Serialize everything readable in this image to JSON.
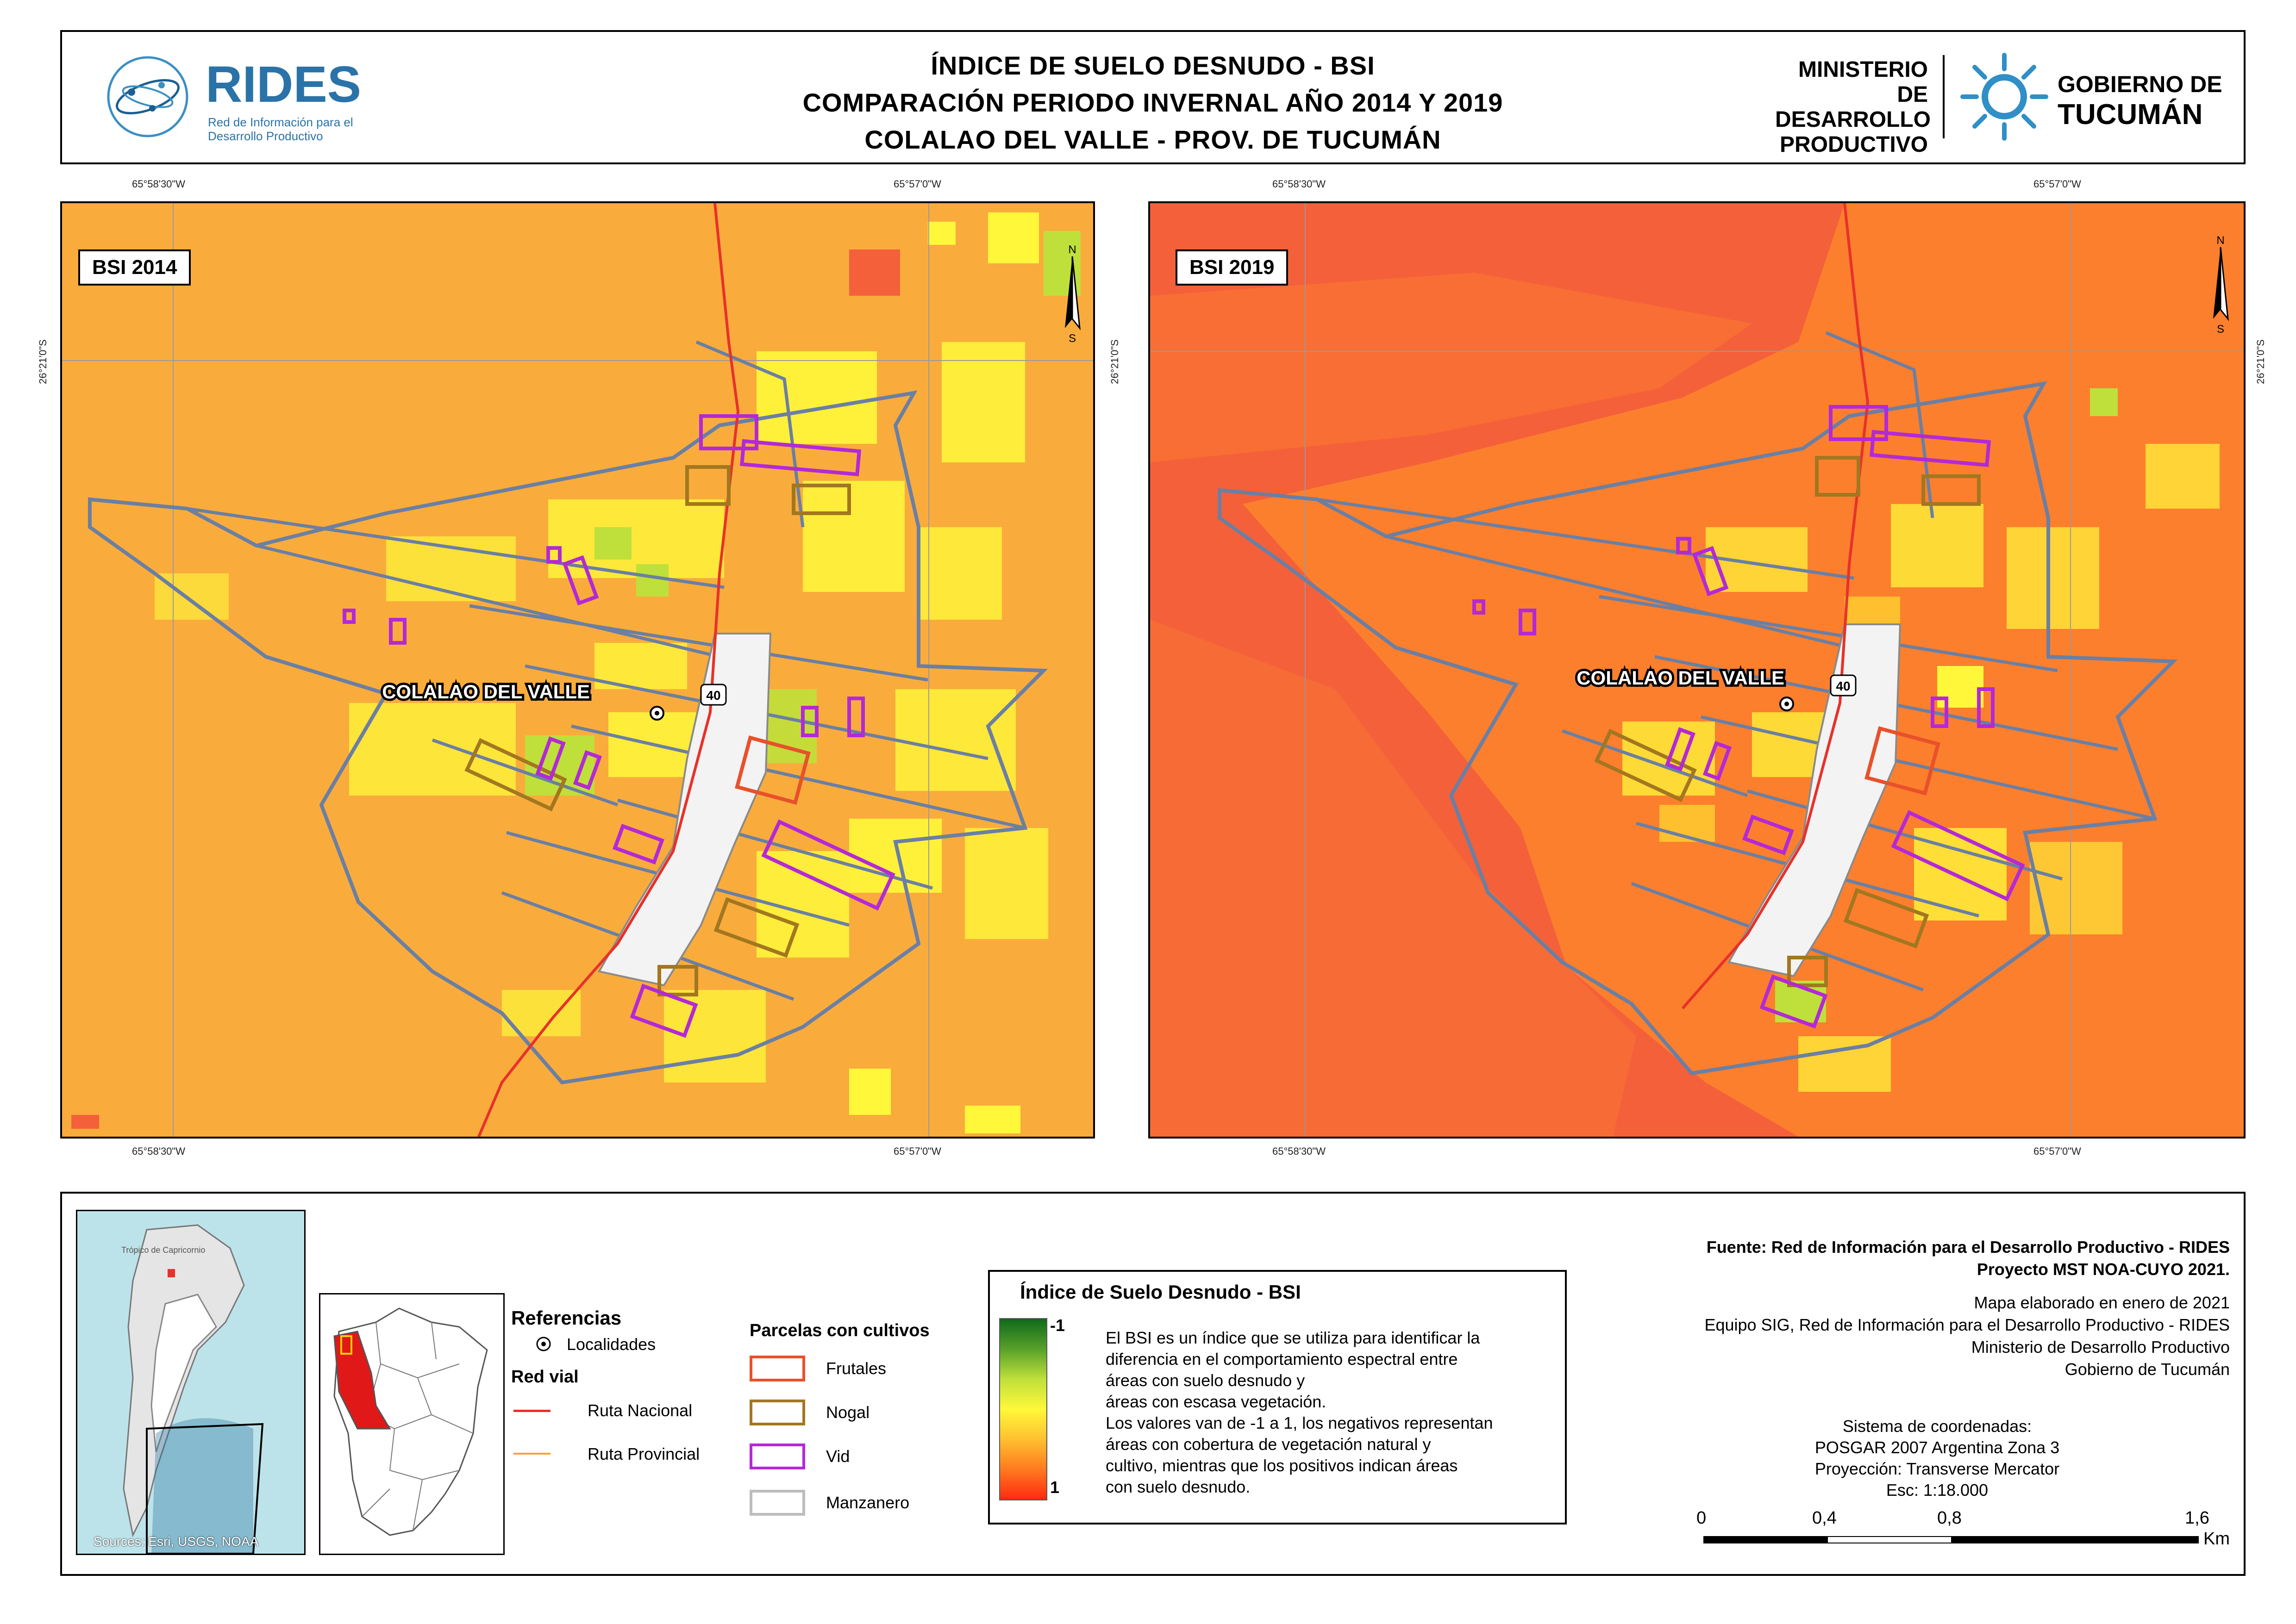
{
  "header": {
    "title_lines": [
      "ÍNDICE DE SUELO DESNUDO - BSI",
      "COMPARACIÓN PERIODO INVERNAL AÑO 2014 Y 2019",
      "COLALAO DEL VALLE - PROV. DE TUCUMÁN"
    ],
    "rides_logo": {
      "name": "RIDES",
      "tagline": "Red de Información para el Desarrollo Productivo"
    },
    "ministerio_logo": [
      "MINISTERIO DE",
      "DESARROLLO",
      "PRODUCTIVO"
    ],
    "gobierno_logo": [
      "GOBIERNO DE",
      "TUCUMÁN"
    ]
  },
  "coordinates": {
    "lon_left": "65°58'30\"W",
    "lon_right": "65°57'0\"W",
    "lat": "26°21'0\"S"
  },
  "maps": [
    {
      "label": "BSI 2014",
      "background": "#f9ac3c",
      "north_arrow": [
        "N",
        "S"
      ]
    },
    {
      "label": "BSI 2019",
      "background": "#f4603a",
      "north_arrow": [
        "N",
        "S"
      ]
    }
  ],
  "map_annotations": {
    "town": "COLALAO DEL VALLE",
    "route_shield": "40"
  },
  "locator_inset": {
    "sources": "Sources: Esri, USGS, NOAA",
    "country_label": "Trópico de Capricornio"
  },
  "references": {
    "title": "Referencias",
    "localidades": "Localidades",
    "red_vial_title": "Red vial",
    "ruta_nacional": "Ruta Nacional",
    "ruta_provincial": "Ruta Provincial",
    "parcelas_title": "Parcelas con cultivos",
    "parcelas": [
      {
        "label": "Frutales",
        "color": "#e8512a"
      },
      {
        "label": "Nogal",
        "color": "#a27720"
      },
      {
        "label": "Vid",
        "color": "#b429d6"
      },
      {
        "label": "Manzanero",
        "color": "#bdbdbd"
      }
    ]
  },
  "bsi_legend": {
    "title": "Índice de Suelo Desnudo - BSI",
    "min_label": "-1",
    "max_label": "1",
    "gradient_colors": [
      "#0f6a1a",
      "#58a12a",
      "#bfe03a",
      "#fff83a",
      "#ffc030",
      "#ff7a20",
      "#ff2a10"
    ],
    "description": [
      "El BSI es un índice que se utiliza para identificar la",
      "diferencia en el comportamiento espectral entre",
      "áreas con suelo desnudo y",
      "áreas con escasa vegetación.",
      "Los valores van de -1 a 1, los negativos representan",
      "áreas con cobertura de vegetación natural y",
      "cultivo, mientras que los positivos indican áreas",
      "con suelo desnudo."
    ]
  },
  "credits": {
    "source_lines": [
      "Fuente: Red de Información para el Desarrollo Productivo - RIDES",
      "Proyecto MST NOA-CUYO 2021."
    ],
    "info_lines": [
      "Mapa elaborado en enero de 2021",
      "Equipo SIG, Red de Información para el Desarrollo Productivo - RIDES",
      "Ministerio de Desarrollo Productivo",
      "Gobierno de Tucumán"
    ],
    "crs_lines": [
      "Sistema de coordenadas:",
      "POSGAR 2007 Argentina Zona 3",
      "Proyección: Transverse Mercator"
    ],
    "scale_text": "Esc:  1:18.000"
  },
  "scale_bar": {
    "ticks": [
      "0",
      "0,4",
      "0,8",
      "1,6"
    ],
    "unit": "Km"
  }
}
